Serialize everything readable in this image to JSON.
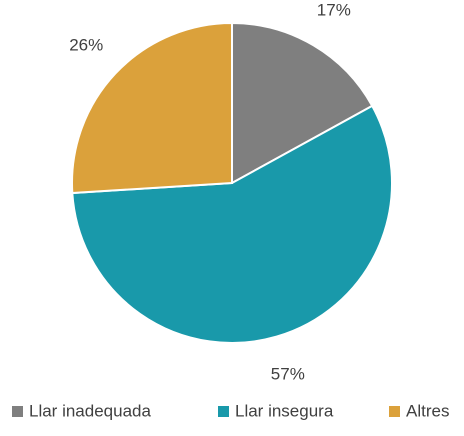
{
  "chart_data": {
    "type": "pie",
    "categories": [
      "Llar inadequada",
      "Llar insegura",
      "Altres"
    ],
    "values": [
      17,
      57,
      26
    ],
    "value_labels": [
      "17%",
      "57%",
      "26%"
    ],
    "colors": [
      "#7f7f7f",
      "#1999aa",
      "#dba13b"
    ],
    "legend": "bottom"
  }
}
